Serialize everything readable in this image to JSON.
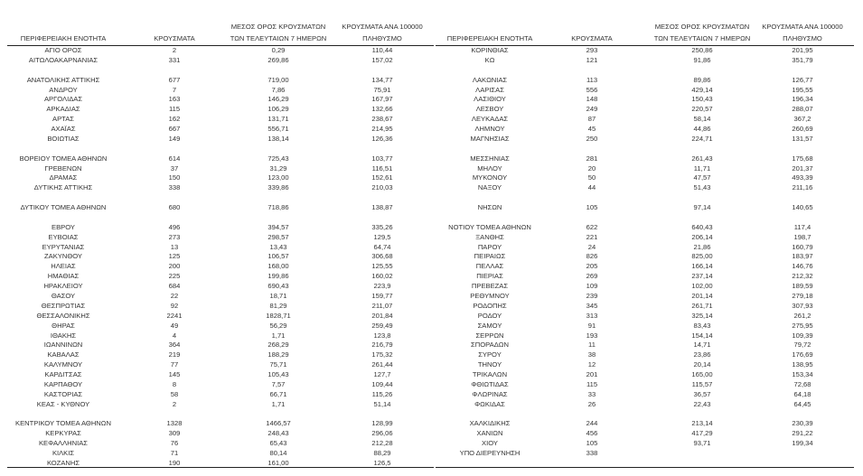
{
  "headers": {
    "region": "ΠΕΡΙΦΕΡΕΙΑΚΗ ΕΝΟΤΗΤΑ",
    "cases": "ΚΡΟΥΣΜΑΤΑ",
    "avg_line1": "ΜΕΣΟΣ ΟΡΟΣ ΚΡΟΥΣΜΑΤΩΝ",
    "avg_line2": "ΤΩΝ ΤΕΛΕΥΤΑΙΩΝ 7 ΗΜΕΡΩΝ",
    "per100k_line1": "ΚΡΟΥΣΜΑΤΑ ΑΝΑ 100000",
    "per100k_line2": "ΠΛΗΘΥΣΜΟ"
  },
  "left_rows": [
    [
      "ΑΓΙΟ ΟΡΟΣ",
      "2",
      "0,29",
      "110,44"
    ],
    [
      "ΑΙΤΩΛΟΑΚΑΡΝΑΝΙΑΣ",
      "331",
      "269,86",
      "157,02"
    ],
    null,
    [
      "ΑΝΑΤΟΛΙΚΗΣ ΑΤΤΙΚΗΣ",
      "677",
      "719,00",
      "134,77"
    ],
    [
      "ΑΝΔΡΟΥ",
      "7",
      "7,86",
      "75,91"
    ],
    [
      "ΑΡΓΟΛΙΔΑΣ",
      "163",
      "146,29",
      "167,97"
    ],
    [
      "ΑΡΚΑΔΙΑΣ",
      "115",
      "106,29",
      "132,66"
    ],
    [
      "ΑΡΤΑΣ",
      "162",
      "131,71",
      "238,67"
    ],
    [
      "ΑΧΑΪΑΣ",
      "667",
      "556,71",
      "214,95"
    ],
    [
      "ΒΟΙΩΤΙΑΣ",
      "149",
      "138,14",
      "126,36"
    ],
    null,
    [
      "ΒΟΡΕΙΟΥ ΤΟΜΕΑ ΑΘΗΝΩΝ",
      "614",
      "725,43",
      "103,77"
    ],
    [
      "ΓΡΕΒΕΝΩΝ",
      "37",
      "31,29",
      "116,51"
    ],
    [
      "ΔΡΑΜΑΣ",
      "150",
      "123,00",
      "152,61"
    ],
    [
      "ΔΥΤΙΚΗΣ ΑΤΤΙΚΗΣ",
      "338",
      "339,86",
      "210,03"
    ],
    null,
    [
      "ΔΥΤΙΚΟΥ ΤΟΜΕΑ ΑΘΗΝΩΝ",
      "680",
      "718,86",
      "138,87"
    ],
    null,
    [
      "ΕΒΡΟΥ",
      "496",
      "394,57",
      "335,26"
    ],
    [
      "ΕΥΒΟΙΑΣ",
      "273",
      "298,57",
      "129,5"
    ],
    [
      "ΕΥΡΥΤΑΝΙΑΣ",
      "13",
      "13,43",
      "64,74"
    ],
    [
      "ΖΑΚΥΝΘΟΥ",
      "125",
      "106,57",
      "306,68"
    ],
    [
      "ΗΛΕΙΑΣ",
      "200",
      "168,00",
      "125,55"
    ],
    [
      "ΗΜΑΘΙΑΣ",
      "225",
      "199,86",
      "160,02"
    ],
    [
      "ΗΡΑΚΛΕΙΟΥ",
      "684",
      "690,43",
      "223,9"
    ],
    [
      "ΘΑΣΟΥ",
      "22",
      "18,71",
      "159,77"
    ],
    [
      "ΘΕΣΠΡΩΤΙΑΣ",
      "92",
      "81,29",
      "211,07"
    ],
    [
      "ΘΕΣΣΑΛΟΝΙΚΗΣ",
      "2241",
      "1828,71",
      "201,84"
    ],
    [
      "ΘΗΡΑΣ",
      "49",
      "56,29",
      "259,49"
    ],
    [
      "ΙΘΑΚΗΣ",
      "4",
      "1,71",
      "123,8"
    ],
    [
      "ΙΩΑΝΝΙΝΩΝ",
      "364",
      "268,29",
      "216,79"
    ],
    [
      "ΚΑΒΑΛΑΣ",
      "219",
      "188,29",
      "175,32"
    ],
    [
      "ΚΑΛΥΜΝΟΥ",
      "77",
      "75,71",
      "261,44"
    ],
    [
      "ΚΑΡΔΙΤΣΑΣ",
      "145",
      "105,43",
      "127,7"
    ],
    [
      "ΚΑΡΠΑΘΟΥ",
      "8",
      "7,57",
      "109,44"
    ],
    [
      "ΚΑΣΤΟΡΙΑΣ",
      "58",
      "66,71",
      "115,26"
    ],
    [
      "ΚΕΑΣ - ΚΥΘΝΟΥ",
      "2",
      "1,71",
      "51,14"
    ],
    null,
    [
      "ΚΕΝΤΡΙΚΟΥ ΤΟΜΕΑ ΑΘΗΝΩΝ",
      "1328",
      "1466,57",
      "128,99"
    ],
    [
      "ΚΕΡΚΥΡΑΣ",
      "309",
      "248,43",
      "296,06"
    ],
    [
      "ΚΕΦΑΛΛΗΝΙΑΣ",
      "76",
      "65,43",
      "212,28"
    ],
    [
      "ΚΙΛΚΙΣ",
      "71",
      "80,14",
      "88,29"
    ],
    [
      "ΚΟΖΑΝΗΣ",
      "190",
      "161,00",
      "126,5"
    ]
  ],
  "right_rows": [
    [
      "ΚΟΡΙΝΘΙΑΣ",
      "293",
      "250,86",
      "201,95"
    ],
    [
      "ΚΩ",
      "121",
      "91,86",
      "351,79"
    ],
    null,
    [
      "ΛΑΚΩΝΙΑΣ",
      "113",
      "89,86",
      "126,77"
    ],
    [
      "ΛΑΡΙΣΑΣ",
      "556",
      "429,14",
      "195,55"
    ],
    [
      "ΛΑΣΙΘΙΟΥ",
      "148",
      "150,43",
      "196,34"
    ],
    [
      "ΛΕΣΒΟΥ",
      "249",
      "220,57",
      "288,07"
    ],
    [
      "ΛΕΥΚΑΔΑΣ",
      "87",
      "58,14",
      "367,2"
    ],
    [
      "ΛΗΜΝΟΥ",
      "45",
      "44,86",
      "260,69"
    ],
    [
      "ΜΑΓΝΗΣΙΑΣ",
      "250",
      "224,71",
      "131,57"
    ],
    null,
    [
      "ΜΕΣΣΗΝΙΑΣ",
      "281",
      "261,43",
      "175,68"
    ],
    [
      "ΜΗΛΟΥ",
      "20",
      "11,71",
      "201,37"
    ],
    [
      "ΜΥΚΟΝΟΥ",
      "50",
      "47,57",
      "493,39"
    ],
    [
      "ΝΑΞΟΥ",
      "44",
      "51,43",
      "211,16"
    ],
    null,
    [
      "ΝΗΣΩΝ",
      "105",
      "97,14",
      "140,65"
    ],
    null,
    [
      "ΝΟΤΙΟΥ ΤΟΜΕΑ ΑΘΗΝΩΝ",
      "622",
      "640,43",
      "117,4"
    ],
    [
      "ΞΑΝΘΗΣ",
      "221",
      "206,14",
      "198,7"
    ],
    [
      "ΠΑΡΟΥ",
      "24",
      "21,86",
      "160,79"
    ],
    [
      "ΠΕΙΡΑΙΩΣ",
      "826",
      "825,00",
      "183,97"
    ],
    [
      "ΠΕΛΛΑΣ",
      "205",
      "166,14",
      "146,76"
    ],
    [
      "ΠΙΕΡΙΑΣ",
      "269",
      "237,14",
      "212,32"
    ],
    [
      "ΠΡΕΒΕΖΑΣ",
      "109",
      "102,00",
      "189,59"
    ],
    [
      "ΡΕΘΥΜΝΟΥ",
      "239",
      "201,14",
      "279,18"
    ],
    [
      "ΡΟΔΟΠΗΣ",
      "345",
      "261,71",
      "307,93"
    ],
    [
      "ΡΟΔΟΥ",
      "313",
      "325,14",
      "261,2"
    ],
    [
      "ΣΑΜΟΥ",
      "91",
      "83,43",
      "275,95"
    ],
    [
      "ΣΕΡΡΩΝ",
      "193",
      "154,14",
      "109,39"
    ],
    [
      "ΣΠΟΡΑΔΩΝ",
      "11",
      "14,71",
      "79,72"
    ],
    [
      "ΣΥΡΟΥ",
      "38",
      "23,86",
      "176,69"
    ],
    [
      "ΤΗΝΟΥ",
      "12",
      "20,14",
      "138,95"
    ],
    [
      "ΤΡΙΚΑΛΩΝ",
      "201",
      "165,00",
      "153,34"
    ],
    [
      "ΦΘΙΩΤΙΔΑΣ",
      "115",
      "115,57",
      "72,68"
    ],
    [
      "ΦΛΩΡΙΝΑΣ",
      "33",
      "36,57",
      "64,18"
    ],
    [
      "ΦΩΚΙΔΑΣ",
      "26",
      "22,43",
      "64,45"
    ],
    null,
    [
      "ΧΑΛΚΙΔΙΚΗΣ",
      "244",
      "213,14",
      "230,39"
    ],
    [
      "ΧΑΝΙΩΝ",
      "456",
      "417,29",
      "291,22"
    ],
    [
      "ΧΙΟΥ",
      "105",
      "93,71",
      "199,34"
    ],
    [
      "ΥΠΟ ΔΙΕΡΕΥΝΗΣΗ",
      "338",
      "",
      ""
    ]
  ]
}
